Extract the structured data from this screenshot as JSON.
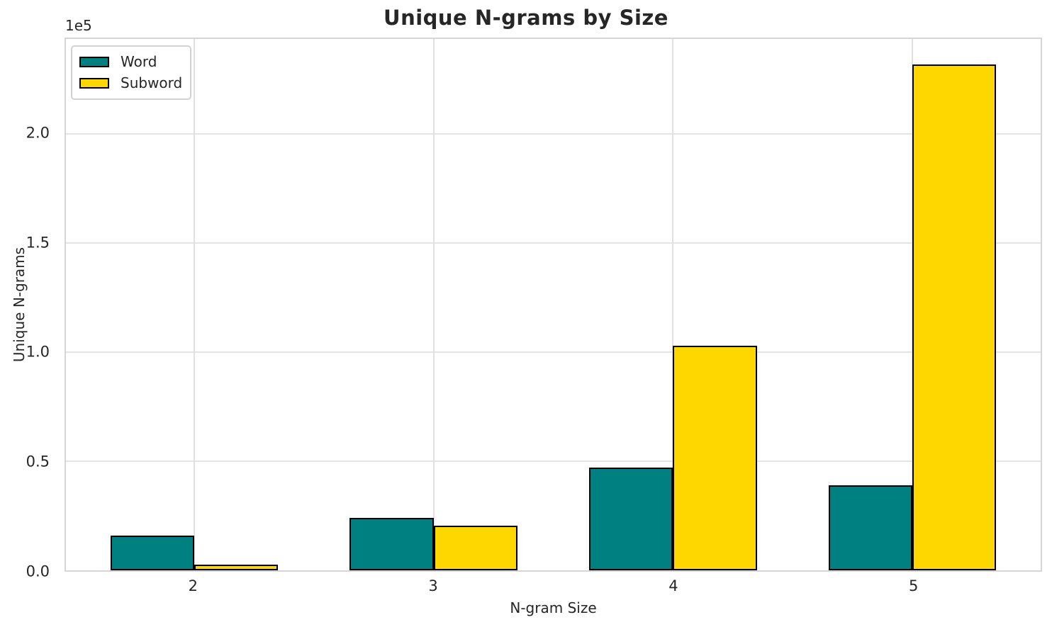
{
  "title": "Unique N-grams by Size",
  "colors": {
    "word": "#008080",
    "subword": "#FFD700",
    "bar_edge": "#000000",
    "grid": "#e4e4e4",
    "spine": "#d6d6d6",
    "text": "#262626",
    "background": "#ffffff"
  },
  "chart_data": {
    "type": "bar",
    "title": "Unique N-grams by Size",
    "xlabel": "N-gram Size",
    "ylabel": "Unique N-grams",
    "y_offset_text": "1e5",
    "categories": [
      "2",
      "3",
      "4",
      "5"
    ],
    "x_positions": [
      0,
      1,
      2,
      3
    ],
    "series": [
      {
        "name": "Word",
        "color": "#008080",
        "values": [
          16000,
          24000,
          47000,
          39000
        ]
      },
      {
        "name": "Subword",
        "color": "#FFD700",
        "values": [
          2500,
          20500,
          103000,
          232000
        ]
      }
    ],
    "bar_width": 0.35,
    "xlim": [
      -0.535,
      3.535
    ],
    "ylim": [
      0,
      243600
    ],
    "yticks": [
      0,
      50000,
      100000,
      150000,
      200000
    ],
    "ytick_labels": [
      "0.0",
      "0.5",
      "1.0",
      "1.5",
      "2.0"
    ],
    "grid": true,
    "legend_position": "upper left",
    "bar_edge_color": "#000000"
  }
}
